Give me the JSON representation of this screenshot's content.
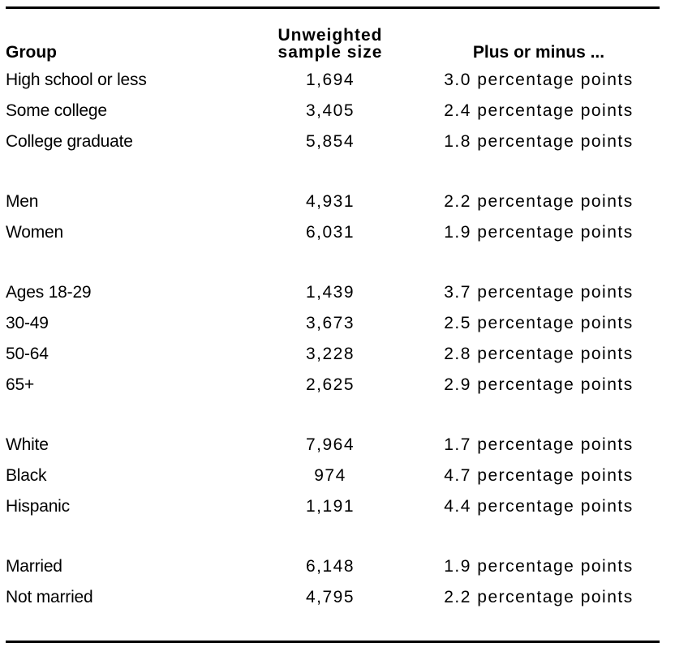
{
  "table": {
    "header": {
      "group": "Group",
      "sample_size_line1": "Unweighted",
      "sample_size_line2": "sample size",
      "margin": "Plus or minus ..."
    },
    "sections": [
      {
        "name": "education",
        "rows": [
          {
            "group": "High school or less",
            "sample_size": "1,694",
            "margin": "3.0 percentage points"
          },
          {
            "group": "Some college",
            "sample_size": "3,405",
            "margin": "2.4 percentage points"
          },
          {
            "group": "College graduate",
            "sample_size": "5,854",
            "margin": "1.8 percentage points"
          }
        ]
      },
      {
        "name": "gender",
        "rows": [
          {
            "group": "Men",
            "sample_size": "4,931",
            "margin": "2.2 percentage points"
          },
          {
            "group": "Women",
            "sample_size": "6,031",
            "margin": "1.9 percentage points"
          }
        ]
      },
      {
        "name": "age",
        "rows": [
          {
            "group": "Ages 18-29",
            "sample_size": "1,439",
            "margin": "3.7 percentage points"
          },
          {
            "group": "30-49",
            "sample_size": "3,673",
            "margin": "2.5 percentage points"
          },
          {
            "group": "50-64",
            "sample_size": "3,228",
            "margin": "2.8 percentage points"
          },
          {
            "group": "65+",
            "sample_size": "2,625",
            "margin": "2.9 percentage points"
          }
        ]
      },
      {
        "name": "race-ethnicity",
        "rows": [
          {
            "group": "White",
            "sample_size": "7,964",
            "margin": "1.7 percentage points"
          },
          {
            "group": "Black",
            "sample_size": "974",
            "margin": "4.7 percentage points"
          },
          {
            "group": "Hispanic",
            "sample_size": "1,191",
            "margin": "4.4 percentage points"
          }
        ]
      },
      {
        "name": "marital-status",
        "rows": [
          {
            "group": "Married",
            "sample_size": "6,148",
            "margin": "1.9 percentage points"
          },
          {
            "group": "Not married",
            "sample_size": "4,795",
            "margin": "2.2 percentage points"
          }
        ]
      }
    ]
  },
  "chart_data": {
    "type": "table",
    "columns": [
      "Group",
      "Unweighted sample size",
      "Plus or minus ..."
    ],
    "rows": [
      [
        "High school or less",
        1694,
        "3.0 percentage points"
      ],
      [
        "Some college",
        3405,
        "2.4 percentage points"
      ],
      [
        "College graduate",
        5854,
        "1.8 percentage points"
      ],
      [
        "Men",
        4931,
        "2.2 percentage points"
      ],
      [
        "Women",
        6031,
        "1.9 percentage points"
      ],
      [
        "Ages 18-29",
        1439,
        "3.7 percentage points"
      ],
      [
        "30-49",
        3673,
        "2.5 percentage points"
      ],
      [
        "50-64",
        3228,
        "2.8 percentage points"
      ],
      [
        "65+",
        2625,
        "2.9 percentage points"
      ],
      [
        "White",
        7964,
        "1.7 percentage points"
      ],
      [
        "Black",
        974,
        "4.7 percentage points"
      ],
      [
        "Hispanic",
        1191,
        "4.4 percentage points"
      ],
      [
        "Married",
        6148,
        "1.9 percentage points"
      ],
      [
        "Not married",
        4795,
        "2.2 percentage points"
      ]
    ]
  },
  "colors": {
    "text": "#000000",
    "rule": "#000000",
    "background": "#ffffff"
  }
}
